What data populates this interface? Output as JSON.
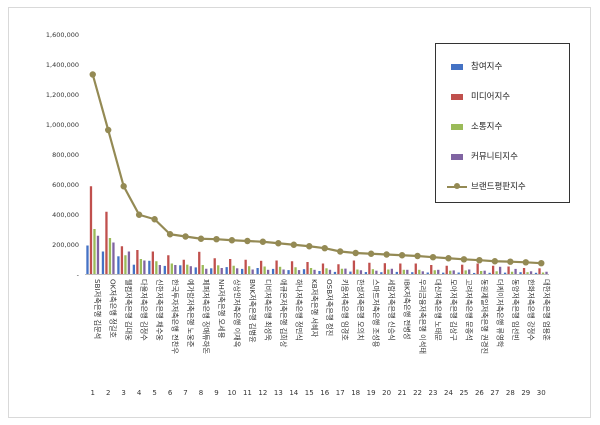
{
  "chart_data": {
    "type": "bar",
    "ylim": [
      0,
      1600000
    ],
    "yticks": [
      "-",
      "200,000",
      "400,000",
      "600,000",
      "800,000",
      "1,000,000",
      "1,200,000",
      "1,400,000",
      "1,600,000"
    ],
    "grid": false,
    "legend_position": "right",
    "categories": [
      "SBI저축은행 김문석",
      "OK저축은행 정길호",
      "웰컴저축은행 김대웅",
      "다올저축은행 김정수",
      "신한저축은행 채수웅",
      "한국투자저축은행 전찬우",
      "예가람저축은행 노웅준",
      "페퍼저축은행 장매튜하돈",
      "NH저축은행 오세용",
      "상상인저축은행 이재옥",
      "BNK저축은행 김병윤",
      "디비저축은행 최성욱",
      "애큐온저축은행 김희상",
      "하나저축은행 정민식",
      "KB저축은행 서혜자",
      "OSB저축은행 정진",
      "키움저축은행 임경호",
      "한성저축은행 오의치",
      "스마트저축은행 조성용",
      "세람저축은행 신승식",
      "IBK저축은행 전병성",
      "우리금융저축은행 이석태",
      "대신저축은행 노태문",
      "모아저축은행 김상구",
      "고려저축은행 문종석",
      "동원제일저축은행 권경진",
      "더케이저축은행 류영학",
      "동양저축은행 임선빈",
      "한화저축은행 강정수",
      "대한저축은행 엄용훈"
    ],
    "numbers": [
      "1",
      "2",
      "3",
      "4",
      "5",
      "6",
      "7",
      "8",
      "9",
      "10",
      "11",
      "12",
      "13",
      "14",
      "15",
      "16",
      "17",
      "18",
      "19",
      "20",
      "21",
      "22",
      "23",
      "24",
      "25",
      "26",
      "27",
      "28",
      "29",
      "30"
    ],
    "series": [
      {
        "name": "참여지수",
        "color": "#4472c4",
        "values": [
          190000,
          150000,
          118000,
          62000,
          88000,
          54000,
          58000,
          44000,
          38000,
          46000,
          34000,
          40000,
          34000,
          26000,
          32000,
          20000,
          14000,
          16000,
          13000,
          12000,
          14000,
          12000,
          10000,
          9000,
          10000,
          7000,
          8000,
          9000,
          12000,
          8000
        ]
      },
      {
        "name": "미디어지수",
        "color": "#c0504d",
        "values": [
          585000,
          415000,
          185000,
          160000,
          150000,
          125000,
          95000,
          148000,
          105000,
          100000,
          95000,
          88000,
          90000,
          85000,
          80000,
          70000,
          65000,
          90000,
          75000,
          72000,
          70000,
          70000,
          60000,
          55000,
          62000,
          70000,
          55000,
          50000,
          40000,
          38000
        ]
      },
      {
        "name": "소통지수",
        "color": "#9bbb59",
        "values": [
          300000,
          240000,
          125000,
          100000,
          85000,
          70000,
          62000,
          60000,
          58000,
          55000,
          52000,
          50000,
          48000,
          45000,
          40000,
          38000,
          35000,
          30000,
          32000,
          30000,
          28000,
          28000,
          25000,
          22000,
          24000,
          20000,
          18000,
          15000,
          12000,
          10000
        ]
      },
      {
        "name": "커뮤니티지수",
        "color": "#8064a2",
        "values": [
          255000,
          210000,
          150000,
          90000,
          60000,
          60000,
          52000,
          35000,
          40000,
          38000,
          30000,
          28000,
          30000,
          26000,
          28000,
          28000,
          36000,
          25000,
          22000,
          35000,
          28000,
          18000,
          28000,
          24000,
          30000,
          22000,
          48000,
          34000,
          18000,
          15000
        ]
      }
    ],
    "line": {
      "name": "브랜드평판지수",
      "color": "#948a54",
      "values": [
        1330000,
        960000,
        585000,
        395000,
        365000,
        265000,
        250000,
        235000,
        232000,
        225000,
        220000,
        215000,
        205000,
        195000,
        185000,
        172000,
        150000,
        140000,
        135000,
        130000,
        125000,
        120000,
        112000,
        105000,
        98000,
        92000,
        85000,
        82000,
        78000,
        72000
      ]
    }
  }
}
